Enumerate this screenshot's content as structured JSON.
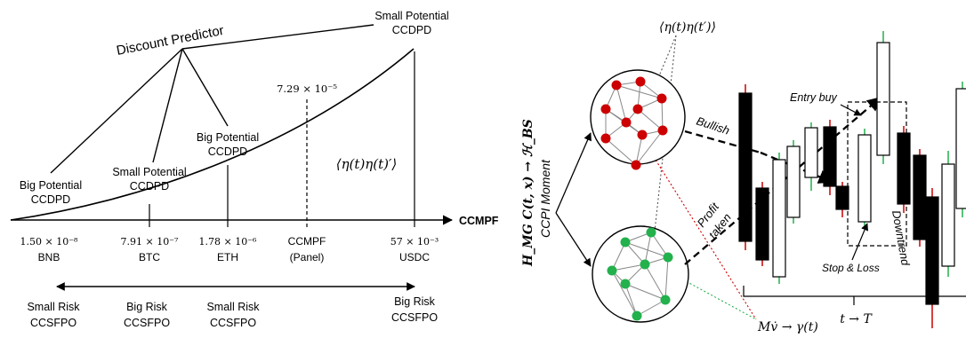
{
  "left": {
    "discount_predictor": "Discount Predictor",
    "small_potential_top": [
      "Small Potential",
      "CCDPD"
    ],
    "big_potential_left": [
      "Big Potential",
      "CCDPD"
    ],
    "small_potential_mid": [
      "Small Potential",
      "CCDPD"
    ],
    "big_potential_mid": [
      "Big Potential",
      "CCDPD"
    ],
    "panel_value": "7.29 × 10⁻⁵",
    "correlation": "⟨η(t)η(t)′⟩",
    "axis_label": "CCMPF",
    "ticks": [
      {
        "value": "1.50 × 10⁻⁸",
        "label": "BNB"
      },
      {
        "value": "7.91 × 10⁻⁷",
        "label": "BTC"
      },
      {
        "value": "1.78 × 10⁻⁶",
        "label": "ETH"
      },
      {
        "value": "CCMPF",
        "label": "(Panel)"
      },
      {
        "value": "57 × 10⁻³",
        "label": "USDC"
      }
    ],
    "risk_labels": [
      [
        "Small Risk",
        "CCSFPO"
      ],
      [
        "Big Risk",
        "CCSFPO"
      ],
      [
        "Small Risk",
        "CCSFPO"
      ],
      [
        "Big Risk",
        "CCSFPO"
      ]
    ]
  },
  "right": {
    "correlation_top": "⟨η(t)η(t′)⟩",
    "vertical_formula": "H_MG C(t, x) → ℋ_BS",
    "vertical_caption": "CCPI Moment",
    "bullish": "Bullish",
    "profit_taken": [
      "Profit",
      "taken"
    ],
    "entry_buy": "Entry buy",
    "stop_loss": "Stop & Loss",
    "downtrend": "Downtrend",
    "time_label": "t → T",
    "mass_formula": "Mv̇ → γ(t)",
    "colors": {
      "red_node": "#cc0000",
      "green_node": "#22b14c",
      "bar_black": "#000000"
    }
  }
}
